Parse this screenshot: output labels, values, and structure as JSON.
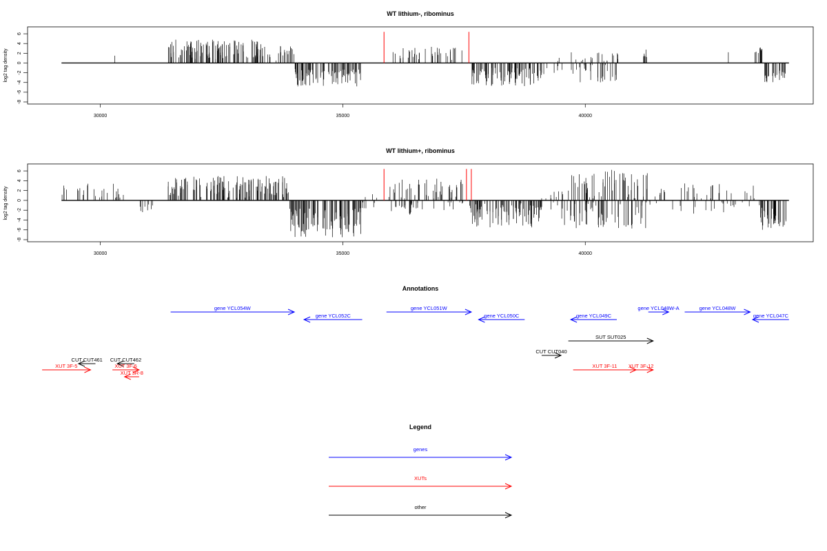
{
  "colors": {
    "gene": "#0000ff",
    "xut": "#ff0000",
    "other": "#000000",
    "signal": "#000000",
    "highlight": "#ff0000"
  },
  "chart_data": [
    {
      "type": "bar",
      "title": "WT lithium-, ribominus",
      "ylabel": "log2 tag density",
      "xlim": [
        28500,
        44700
      ],
      "ylim": [
        -8,
        7
      ],
      "xticks": [
        30000,
        35000,
        40000
      ],
      "yticks": [
        6,
        4,
        2,
        0,
        -2,
        -4,
        -6,
        -8
      ],
      "baseline": [
        29200,
        44200
      ],
      "highlights": [
        {
          "x": 35850,
          "y": 6.4
        },
        {
          "x": 37600,
          "y": 6.4
        }
      ],
      "segments": [
        {
          "from": 30300,
          "to": 30300,
          "min": 1.5,
          "max": 1.5,
          "density": 1
        },
        {
          "from": 31400,
          "to": 33400,
          "min": 0.8,
          "max": 4.8,
          "density": 0.85
        },
        {
          "from": 33450,
          "to": 34000,
          "min": 0.5,
          "max": 3.5,
          "density": 0.5
        },
        {
          "from": 34000,
          "to": 35400,
          "min": -4.8,
          "max": -1.2,
          "density": 0.85
        },
        {
          "from": 36000,
          "to": 37500,
          "min": 0.5,
          "max": 3.5,
          "density": 0.35
        },
        {
          "from": 37650,
          "to": 39100,
          "min": -4.8,
          "max": -1.0,
          "density": 0.85
        },
        {
          "from": 39100,
          "to": 39600,
          "min": -2.5,
          "max": 1.5,
          "density": 0.25
        },
        {
          "from": 39700,
          "to": 40700,
          "min": -4.0,
          "max": 2.5,
          "density": 0.7
        },
        {
          "from": 41200,
          "to": 41300,
          "min": 1.0,
          "max": 2.8,
          "density": 1
        },
        {
          "from": 42950,
          "to": 42950,
          "min": 2.2,
          "max": 2.2,
          "density": 1
        },
        {
          "from": 43500,
          "to": 43650,
          "min": 1.5,
          "max": 3.5,
          "density": 1
        },
        {
          "from": 43700,
          "to": 44150,
          "min": -4.0,
          "max": -1.5,
          "density": 0.75
        }
      ]
    },
    {
      "type": "bar",
      "title": "WT lithium+, ribominus",
      "ylabel": "log2 tag density",
      "xlim": [
        28500,
        44700
      ],
      "ylim": [
        -8,
        7
      ],
      "xticks": [
        30000,
        35000,
        40000
      ],
      "yticks": [
        6,
        4,
        2,
        0,
        -2,
        -4,
        -6,
        -8
      ],
      "baseline": [
        29200,
        44200
      ],
      "highlights": [
        {
          "x": 35850,
          "y": 6.4
        },
        {
          "x": 37550,
          "y": 6.4
        },
        {
          "x": 37650,
          "y": 6.4
        }
      ],
      "segments": [
        {
          "from": 29200,
          "to": 30500,
          "min": 0.5,
          "max": 3.5,
          "density": 0.3
        },
        {
          "from": 30800,
          "to": 31100,
          "min": -2.5,
          "max": -0.5,
          "density": 0.4
        },
        {
          "from": 31400,
          "to": 33900,
          "min": 0.5,
          "max": 5.0,
          "density": 0.75
        },
        {
          "from": 33900,
          "to": 35400,
          "min": -7.5,
          "max": -1.5,
          "density": 0.95
        },
        {
          "from": 35400,
          "to": 35800,
          "min": -2.0,
          "max": 1.5,
          "density": 0.3
        },
        {
          "from": 35950,
          "to": 37500,
          "min": -3.0,
          "max": 4.5,
          "density": 0.7
        },
        {
          "from": 37600,
          "to": 39100,
          "min": -5.5,
          "max": -0.5,
          "density": 0.9
        },
        {
          "from": 39100,
          "to": 39500,
          "min": -2.0,
          "max": 2.0,
          "density": 0.4
        },
        {
          "from": 39500,
          "to": 41300,
          "min": -6.0,
          "max": 6.5,
          "density": 0.95
        },
        {
          "from": 41300,
          "to": 42900,
          "min": -3.0,
          "max": 3.5,
          "density": 0.35
        },
        {
          "from": 42900,
          "to": 43600,
          "min": -2.0,
          "max": 3.5,
          "density": 0.3
        },
        {
          "from": 43600,
          "to": 44150,
          "min": -6.0,
          "max": -1.5,
          "density": 0.95
        }
      ]
    }
  ],
  "annotations": {
    "title": "Annotations",
    "features": [
      {
        "label": "gene YCL054W",
        "type": "gene",
        "from": 31450,
        "to": 34000,
        "row": 0
      },
      {
        "label": "gene YCL052C",
        "type": "gene",
        "from": 35400,
        "to": 34200,
        "row": 1
      },
      {
        "label": "gene YCL051W",
        "type": "gene",
        "from": 35900,
        "to": 37650,
        "row": 0
      },
      {
        "label": "gene YCL050C",
        "type": "gene",
        "from": 38750,
        "to": 37800,
        "row": 1
      },
      {
        "label": "gene YCL049C",
        "type": "gene",
        "from": 40650,
        "to": 39700,
        "row": 1
      },
      {
        "label": "gene YCL048W-A",
        "type": "gene",
        "from": 41300,
        "to": 41720,
        "row": 0
      },
      {
        "label": "gene YCL048W",
        "type": "gene",
        "from": 42050,
        "to": 43400,
        "row": 0
      },
      {
        "label": "gene YCL047C",
        "type": "gene",
        "from": 44200,
        "to": 43450,
        "row": 1
      },
      {
        "label": "SUT SUT025",
        "type": "other",
        "from": 39650,
        "to": 41400,
        "row": 2
      },
      {
        "label": "CUT CUT461",
        "type": "other",
        "from": 29900,
        "to": 29550,
        "row": 3
      },
      {
        "label": "CUT CUT462",
        "type": "other",
        "from": 30700,
        "to": 30350,
        "row": 3
      },
      {
        "label": "CUT CUT040",
        "type": "other",
        "from": 39100,
        "to": 39500,
        "row": 4
      },
      {
        "label": "XUT 3F-5",
        "type": "xut",
        "from": 28800,
        "to": 29800,
        "row": 5
      },
      {
        "label": "XUT 3F-6",
        "type": "xut",
        "from": 30250,
        "to": 30800,
        "row": 5
      },
      {
        "label": "XUT 3R-8",
        "type": "xut",
        "from": 30800,
        "to": 30500,
        "row": 6
      },
      {
        "label": "XUT 3F-11",
        "type": "xut",
        "from": 39750,
        "to": 41050,
        "row": 5
      },
      {
        "label": "XUT 3F-12",
        "type": "xut",
        "from": 40900,
        "to": 41400,
        "row": 5
      }
    ]
  },
  "legend": {
    "title": "Legend",
    "items": [
      {
        "label": "genes",
        "type": "gene"
      },
      {
        "label": "XUTs",
        "type": "xut"
      },
      {
        "label": "other",
        "type": "other"
      }
    ]
  }
}
